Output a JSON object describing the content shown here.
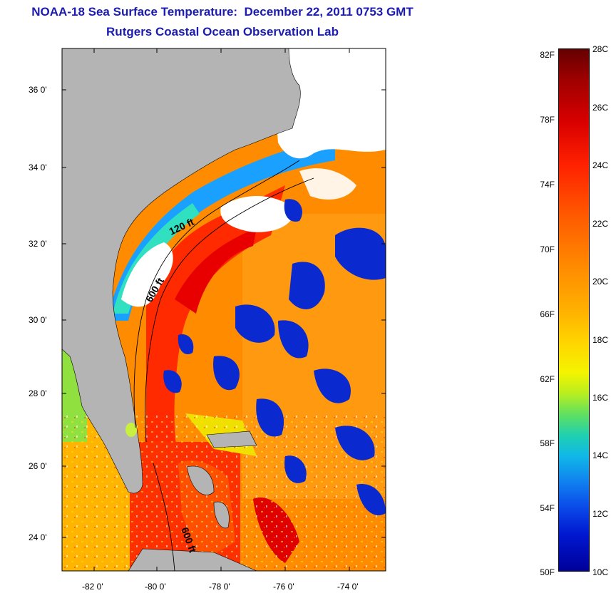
{
  "title": {
    "line1": "NOAA-18 Sea Surface Temperature:  December 22, 2011 0753 GMT",
    "line2": "Rutgers Coastal Ocean Observation Lab"
  },
  "axes": {
    "lat_labels": [
      "36 0'",
      "34 0'",
      "32 0'",
      "30 0'",
      "28 0'",
      "26 0'",
      "24 0'"
    ],
    "lon_labels": [
      "-82 0'",
      "-80 0'",
      "-78 0'",
      "-76 0'",
      "-74 0'"
    ]
  },
  "contours": {
    "label_120": "120 ft",
    "label_600a": "600 ft",
    "label_600b": "600 ft"
  },
  "colorbar": {
    "fahrenheit": [
      "82F",
      "78F",
      "74F",
      "70F",
      "66F",
      "62F",
      "58F",
      "54F",
      "50F"
    ],
    "celsius": [
      "28C",
      "26C",
      "24C",
      "22C",
      "20C",
      "18C",
      "16C",
      "14C",
      "12C",
      "10C"
    ]
  },
  "colors": {
    "title": "#1c1cb0",
    "land": "#b4b4b4",
    "warm_water": "#ff8c00",
    "hot_water": "#ff2000",
    "cold_cloud": "#0a2ad0",
    "cloud": "#ffffff"
  }
}
